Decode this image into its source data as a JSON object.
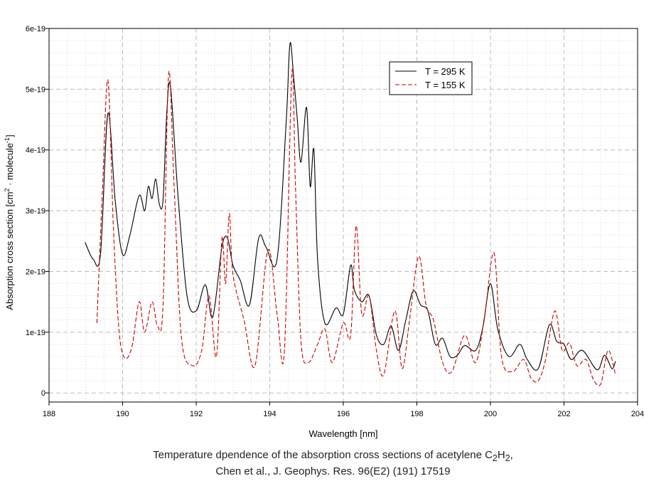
{
  "chart_data": {
    "type": "line",
    "title": "",
    "xlabel": "Wavelength [nm]",
    "ylabel_parts": [
      "Absorption cross section [cm",
      "2",
      " · molecule",
      "-1",
      "]"
    ],
    "xlim": [
      188,
      204
    ],
    "ylim": [
      -0.15,
      6
    ],
    "x_ticks": [
      188,
      190,
      192,
      194,
      196,
      198,
      200,
      202,
      204
    ],
    "x_tick_labels": [
      "188",
      "190",
      "192",
      "194",
      "196",
      "198",
      "200",
      "202",
      "204"
    ],
    "y_ticks": [
      0,
      1,
      2,
      3,
      4,
      5,
      6
    ],
    "y_tick_labels": [
      "0",
      "1e-19",
      "2e-19",
      "3e-19",
      "4e-19",
      "5e-19",
      "6e-19"
    ],
    "y_unit_note": "values in units of 1e-19",
    "grid": true,
    "legend_position": "top-right",
    "series": [
      {
        "name": "T = 295 K",
        "color": "#000000",
        "dash": "solid",
        "x": [
          188.98,
          189.2,
          189.4,
          189.6,
          189.8,
          190.0,
          190.2,
          190.45,
          190.6,
          190.7,
          190.8,
          190.9,
          191.0,
          191.1,
          191.2,
          191.3,
          191.5,
          191.75,
          192.0,
          192.25,
          192.45,
          192.7,
          192.85,
          193.0,
          193.2,
          193.45,
          193.7,
          193.9,
          194.2,
          194.45,
          194.55,
          194.65,
          194.75,
          194.85,
          195.0,
          195.1,
          195.2,
          195.3,
          195.5,
          195.8,
          196.0,
          196.2,
          196.3,
          196.5,
          196.7,
          196.9,
          197.1,
          197.3,
          197.5,
          197.7,
          197.9,
          198.1,
          198.3,
          198.5,
          198.7,
          198.9,
          199.1,
          199.3,
          199.6,
          199.8,
          200.0,
          200.2,
          200.5,
          200.8,
          201.0,
          201.3,
          201.6,
          201.8,
          202.0,
          202.2,
          202.5,
          202.9,
          203.1,
          203.3,
          203.4
        ],
        "values": [
          2.48,
          2.2,
          2.3,
          4.6,
          3.15,
          2.28,
          2.6,
          3.25,
          3.0,
          3.4,
          3.2,
          3.52,
          3.1,
          3.18,
          4.6,
          5.05,
          3.3,
          1.6,
          1.35,
          1.78,
          1.25,
          2.4,
          2.55,
          2.1,
          1.85,
          1.45,
          2.55,
          2.4,
          2.2,
          4.5,
          5.75,
          5.2,
          4.5,
          3.8,
          4.7,
          3.4,
          4.0,
          2.2,
          1.15,
          1.4,
          1.3,
          2.1,
          1.7,
          1.5,
          1.6,
          0.95,
          0.8,
          1.1,
          0.7,
          1.2,
          1.68,
          1.45,
          1.35,
          0.8,
          0.9,
          0.6,
          0.62,
          0.78,
          0.7,
          1.1,
          1.8,
          1.05,
          0.6,
          0.8,
          0.55,
          0.4,
          1.12,
          0.85,
          0.8,
          0.55,
          0.7,
          0.38,
          0.62,
          0.4,
          0.52
        ]
      },
      {
        "name": "T = 155 K",
        "color": "#cc0000",
        "dash": "dashed",
        "x": [
          189.3,
          189.45,
          189.6,
          189.75,
          189.9,
          190.05,
          190.25,
          190.45,
          190.6,
          190.8,
          190.95,
          191.1,
          191.25,
          191.4,
          191.6,
          191.9,
          192.15,
          192.35,
          192.55,
          192.7,
          192.8,
          192.9,
          193.0,
          193.3,
          193.6,
          193.95,
          194.2,
          194.4,
          194.6,
          194.7,
          194.85,
          195.05,
          195.3,
          195.5,
          195.7,
          196.0,
          196.2,
          196.35,
          196.5,
          196.7,
          196.9,
          197.1,
          197.4,
          197.6,
          197.8,
          198.05,
          198.25,
          198.45,
          198.7,
          198.95,
          199.3,
          199.6,
          199.85,
          200.1,
          200.3,
          200.6,
          200.9,
          201.1,
          201.3,
          201.5,
          201.75,
          201.95,
          202.15,
          202.35,
          202.6,
          202.8,
          203.0,
          203.2,
          203.4
        ],
        "values": [
          1.15,
          3.3,
          5.15,
          2.7,
          1.05,
          0.58,
          0.75,
          1.5,
          1.0,
          1.5,
          1.1,
          1.45,
          5.25,
          3.4,
          0.9,
          0.45,
          0.7,
          1.6,
          0.6,
          2.55,
          1.8,
          2.95,
          1.95,
          1.2,
          0.45,
          2.35,
          1.3,
          0.7,
          5.25,
          3.4,
          0.85,
          0.5,
          0.8,
          1.05,
          0.5,
          1.15,
          0.95,
          2.75,
          1.3,
          1.6,
          0.7,
          0.3,
          1.35,
          0.4,
          1.2,
          2.25,
          1.45,
          1.2,
          0.5,
          0.35,
          0.95,
          0.5,
          1.3,
          2.3,
          0.6,
          0.35,
          0.55,
          0.25,
          0.2,
          0.55,
          1.35,
          0.7,
          0.82,
          0.45,
          0.55,
          0.22,
          0.15,
          0.7,
          0.3
        ]
      }
    ]
  },
  "caption": {
    "line1_prefix": "Temperature dpendence of the absorption cross sections of acetylene C",
    "line1_sub1": "2",
    "line1_mid": "H",
    "line1_sub2": "2",
    "line1_suffix": ",",
    "line2": "Chen et al., J. Geophys. Res. 96(E2) (191) 17519"
  }
}
